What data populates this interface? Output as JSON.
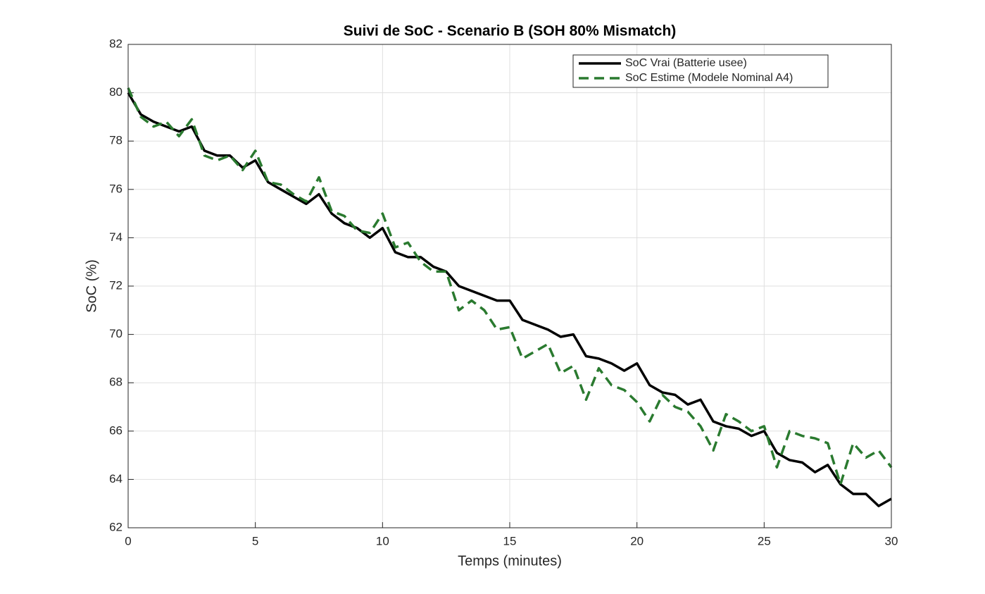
{
  "chart_data": {
    "type": "line",
    "title": "Suivi de SoC - Scenario B (SOH 80% Mismatch)",
    "xlabel": "Temps (minutes)",
    "ylabel": "SoC (%)",
    "x": [
      0,
      0.5,
      1,
      1.5,
      2,
      2.5,
      3,
      3.5,
      4,
      4.5,
      5,
      5.5,
      6,
      6.5,
      7,
      7.5,
      8,
      8.5,
      9,
      9.5,
      10,
      10.5,
      11,
      11.5,
      12,
      12.5,
      13,
      13.5,
      14,
      14.5,
      15,
      15.5,
      16,
      16.5,
      17,
      17.5,
      18,
      18.5,
      19,
      19.5,
      20,
      20.5,
      21,
      21.5,
      22,
      22.5,
      23,
      23.5,
      24,
      24.5,
      25,
      25.5,
      26,
      26.5,
      27,
      27.5,
      28,
      28.5,
      29,
      29.5,
      30
    ],
    "series": [
      {
        "name": "SoC Vrai (Batterie usee)",
        "color": "#000000",
        "dash": "solid",
        "values": [
          80.0,
          79.1,
          78.8,
          78.6,
          78.4,
          78.6,
          77.6,
          77.4,
          77.4,
          76.9,
          77.2,
          76.3,
          76.0,
          75.7,
          75.4,
          75.8,
          75.0,
          74.6,
          74.4,
          74.0,
          74.4,
          73.4,
          73.2,
          73.2,
          72.8,
          72.6,
          72.0,
          71.8,
          71.6,
          71.4,
          71.4,
          70.6,
          70.4,
          70.2,
          69.9,
          70.0,
          69.1,
          69.0,
          68.8,
          68.5,
          68.8,
          67.9,
          67.6,
          67.5,
          67.1,
          67.3,
          66.4,
          66.2,
          66.1,
          65.8,
          66.0,
          65.1,
          64.8,
          64.7,
          64.3,
          64.6,
          63.8,
          63.4,
          63.4,
          62.9,
          63.2
        ]
      },
      {
        "name": "SoC Estime (Modele Nominal A4)",
        "color": "#2a7a2f",
        "dash": "dashed",
        "values": [
          80.2,
          79.0,
          78.6,
          78.8,
          78.2,
          78.9,
          77.4,
          77.2,
          77.4,
          76.8,
          77.6,
          76.3,
          76.2,
          75.8,
          75.5,
          76.5,
          75.1,
          74.9,
          74.3,
          74.2,
          75.0,
          73.6,
          73.8,
          73.0,
          72.6,
          72.6,
          71.0,
          71.4,
          71.0,
          70.2,
          70.3,
          69.0,
          69.3,
          69.6,
          68.4,
          68.7,
          67.3,
          68.6,
          67.9,
          67.7,
          67.2,
          66.4,
          67.5,
          67.0,
          66.8,
          66.2,
          65.2,
          66.7,
          66.4,
          66.0,
          66.2,
          64.5,
          66.0,
          65.8,
          65.7,
          65.5,
          63.8,
          65.5,
          64.9,
          65.2,
          64.5
        ]
      }
    ],
    "xlim": [
      0,
      30
    ],
    "xticks": [
      0,
      5,
      10,
      15,
      20,
      25,
      30
    ],
    "ylim": [
      62,
      82
    ],
    "yticks": [
      62,
      64,
      66,
      68,
      70,
      72,
      74,
      76,
      78,
      80,
      82
    ],
    "grid": true,
    "legend": "upper right"
  }
}
